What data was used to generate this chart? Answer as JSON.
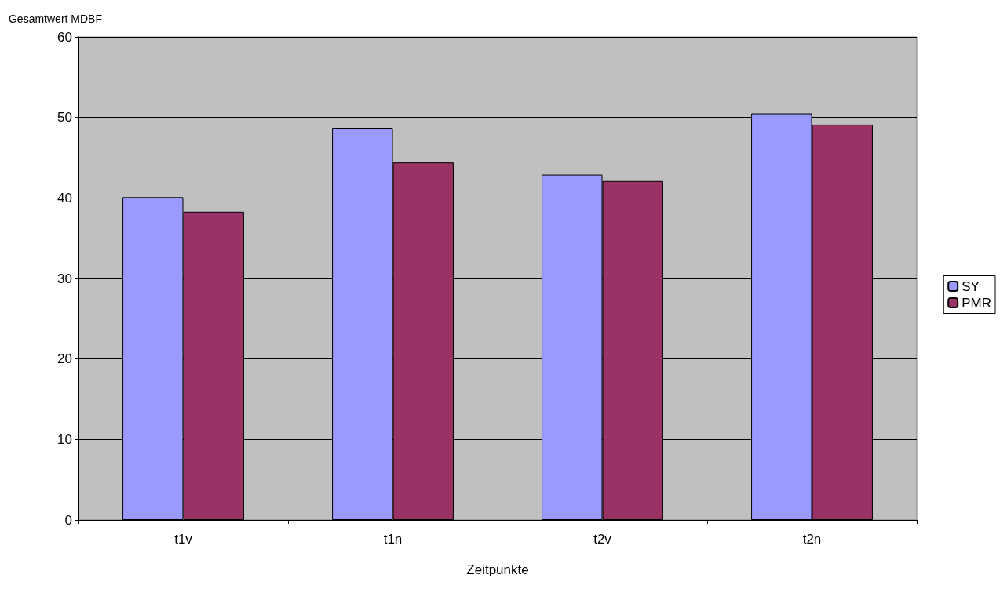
{
  "chart_data": {
    "type": "bar",
    "ylabel": "Gesamtwert MDBF",
    "xlabel": "Zeitpunkte",
    "categories": [
      "t1v",
      "t1n",
      "t2v",
      "t2n"
    ],
    "series": [
      {
        "name": "SY",
        "color": "#9999ff",
        "values": [
          40.1,
          48.7,
          42.9,
          50.5
        ]
      },
      {
        "name": "PMR",
        "color": "#993366",
        "values": [
          38.3,
          44.4,
          42.1,
          49.1
        ]
      }
    ],
    "ylim": [
      0,
      60
    ],
    "yticks": [
      0,
      10,
      20,
      30,
      40,
      50,
      60
    ],
    "grid": "y",
    "legend": "right"
  }
}
